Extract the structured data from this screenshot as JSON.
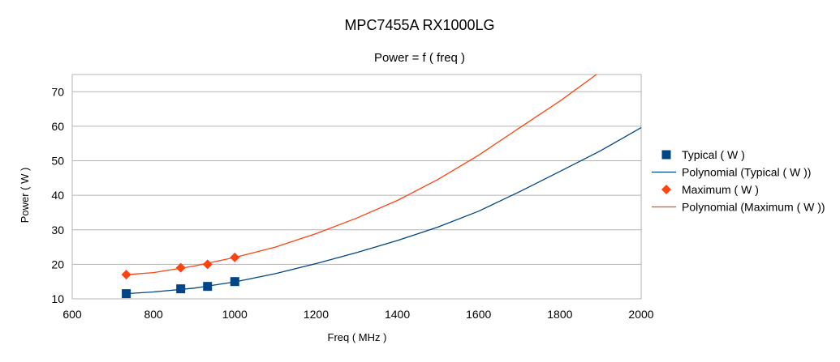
{
  "chart_data": {
    "type": "scatter",
    "title": "MPC7455A RX1000LG",
    "subtitle": "Power = f ( freq )",
    "xlabel": "Freq ( MHz )",
    "ylabel": "Power ( W )",
    "xlim": [
      600,
      2000
    ],
    "ylim": [
      10,
      75
    ],
    "xticks": [
      600,
      800,
      1000,
      1200,
      1400,
      1600,
      1800,
      2000
    ],
    "yticks": [
      10,
      20,
      30,
      40,
      50,
      60,
      70
    ],
    "grid": true,
    "legend_position": "right",
    "series": [
      {
        "name": "Typical ( W )",
        "kind": "scatter",
        "marker": "square",
        "color": "#004586",
        "points": [
          [
            733,
            11.5
          ],
          [
            867,
            12.9
          ],
          [
            933,
            13.6
          ],
          [
            1000,
            15.0
          ]
        ]
      },
      {
        "name": "Polynomial (Typical ( W ))",
        "kind": "trendline",
        "color": "#004586",
        "points": [
          [
            733,
            11.5
          ],
          [
            800,
            12.0
          ],
          [
            900,
            13.1
          ],
          [
            1000,
            14.9
          ],
          [
            1100,
            17.3
          ],
          [
            1200,
            20.2
          ],
          [
            1300,
            23.4
          ],
          [
            1400,
            26.9
          ],
          [
            1500,
            30.8
          ],
          [
            1600,
            35.4
          ],
          [
            1700,
            41.0
          ],
          [
            1800,
            46.9
          ],
          [
            1900,
            52.9
          ],
          [
            2000,
            59.6
          ]
        ]
      },
      {
        "name": "Maximum ( W )",
        "kind": "scatter",
        "marker": "diamond",
        "color": "#ff420e",
        "points": [
          [
            733,
            17.0
          ],
          [
            867,
            19.0
          ],
          [
            933,
            20.0
          ],
          [
            1000,
            22.0
          ]
        ]
      },
      {
        "name": "Polynomial (Maximum ( W ))",
        "kind": "trendline",
        "color": "#ff420e",
        "points": [
          [
            733,
            17.0
          ],
          [
            800,
            17.6
          ],
          [
            900,
            19.5
          ],
          [
            1000,
            22.0
          ],
          [
            1100,
            25.0
          ],
          [
            1200,
            28.9
          ],
          [
            1300,
            33.4
          ],
          [
            1400,
            38.5
          ],
          [
            1500,
            44.6
          ],
          [
            1600,
            51.6
          ],
          [
            1700,
            59.5
          ],
          [
            1800,
            67.3
          ],
          [
            1890,
            75.0
          ]
        ]
      }
    ]
  }
}
